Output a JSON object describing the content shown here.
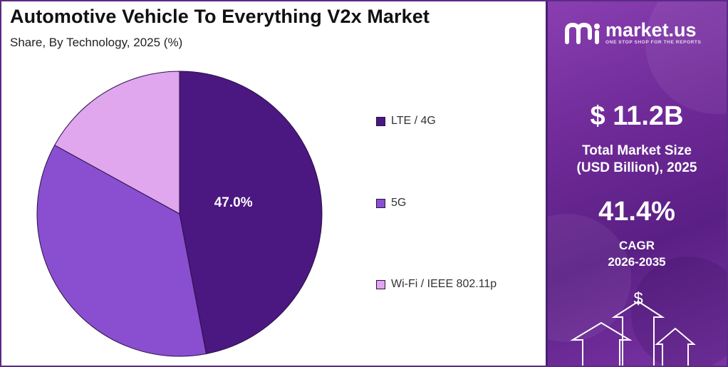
{
  "header": {
    "title": "Automotive Vehicle To Everything V2x Market",
    "subtitle": "Share, By Technology, 2025 (%)"
  },
  "chart_data": {
    "type": "pie",
    "title": "Automotive Vehicle To Everything V2x Market",
    "subtitle": "Share, By Technology, 2025 (%)",
    "categories": [
      "LTE / 4G",
      "5G",
      "Wi-Fi / IEEE 802.11p"
    ],
    "values": [
      47.0,
      36.0,
      17.0
    ],
    "shown_labels": [
      "47.0%",
      "",
      ""
    ],
    "colors": [
      "#4b1780",
      "#8a4fd0",
      "#e0a6ee"
    ],
    "legend_position": "right"
  },
  "legend": {
    "items": [
      {
        "label": "LTE / 4G",
        "color": "#4b1780"
      },
      {
        "label": "5G",
        "color": "#8a4fd0"
      },
      {
        "label": "Wi-Fi / IEEE 802.11p",
        "color": "#e0a6ee"
      }
    ]
  },
  "panel": {
    "brand": "market.us",
    "tagline": "ONE STOP SHOP FOR THE REPORTS",
    "market_size_value": "$ 11.2B",
    "market_size_label_line1": "Total Market Size",
    "market_size_label_line2": "(USD Billion), 2025",
    "cagr_value": "41.4%",
    "cagr_label_line1": "CAGR",
    "cagr_label_line2": "2026-2035",
    "dollar_glyph": "$"
  },
  "colors": {
    "panel_bg": "#6f2a98",
    "border": "#5b2a86"
  }
}
